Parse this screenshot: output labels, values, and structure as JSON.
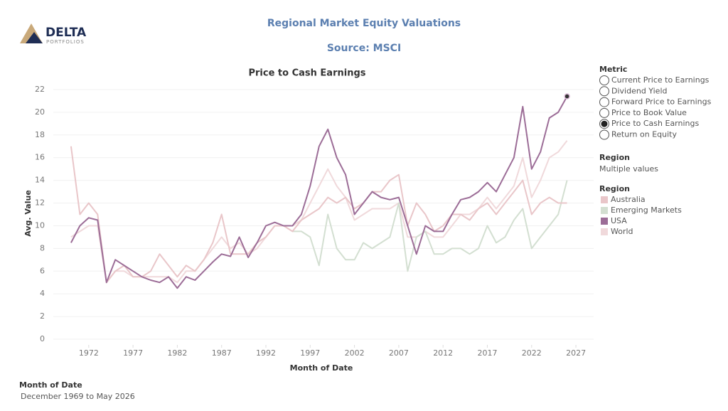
{
  "header": {
    "logo_name": "DELTA",
    "logo_sub": "PORTFOLIOS",
    "title": "Regional Market Equity Valuations",
    "subtitle": "Source: MSCI"
  },
  "chart_data": {
    "type": "line",
    "title": "Price to Cash Earnings",
    "x_label": "Month of Date",
    "y_label": "Avg. Value",
    "x": [
      1970,
      1971,
      1972,
      1973,
      1974,
      1975,
      1976,
      1977,
      1978,
      1979,
      1980,
      1981,
      1982,
      1983,
      1984,
      1985,
      1986,
      1987,
      1988,
      1989,
      1990,
      1991,
      1992,
      1993,
      1994,
      1995,
      1996,
      1997,
      1998,
      1999,
      2000,
      2001,
      2002,
      2003,
      2004,
      2005,
      2006,
      2007,
      2008,
      2009,
      2010,
      2011,
      2012,
      2013,
      2014,
      2015,
      2016,
      2017,
      2018,
      2019,
      2020,
      2021,
      2022,
      2023,
      2024,
      2025,
      2026
    ],
    "series": [
      {
        "name": "Australia",
        "color": "#e9c6c9",
        "values": [
          17,
          11,
          12,
          11,
          5,
          6,
          6.5,
          5.5,
          5.5,
          6,
          7.5,
          6.5,
          5.5,
          6.5,
          6,
          7,
          8.5,
          11,
          7.5,
          7.5,
          7.5,
          8.5,
          9,
          10,
          10,
          9.5,
          10.5,
          11,
          11.5,
          12.5,
          12,
          12.5,
          11.5,
          12,
          13,
          13,
          14,
          14.5,
          10,
          12,
          11,
          9.5,
          10,
          11,
          11,
          10.5,
          11.5,
          12,
          11,
          12,
          13,
          14,
          11,
          12,
          12.5,
          12,
          12
        ]
      },
      {
        "name": "Emerging Markets",
        "color": "#d3dfd1",
        "values": [
          null,
          null,
          null,
          null,
          null,
          null,
          null,
          null,
          null,
          null,
          null,
          null,
          null,
          null,
          null,
          null,
          null,
          null,
          null,
          null,
          null,
          null,
          null,
          null,
          null,
          9.5,
          9.5,
          9,
          6.5,
          11,
          8,
          7,
          7,
          8.5,
          8,
          8.5,
          9,
          12,
          6,
          9,
          9.5,
          7.5,
          7.5,
          8,
          8,
          7.5,
          8,
          10,
          8.5,
          9,
          10.5,
          11.5,
          8,
          9,
          10,
          11,
          14
        ]
      },
      {
        "name": "USA",
        "color": "#9c6d97",
        "values": [
          8.5,
          10,
          10.7,
          10.5,
          5,
          7,
          6.5,
          6,
          5.5,
          5.2,
          5,
          5.5,
          4.5,
          5.5,
          5.2,
          6,
          6.8,
          7.5,
          7.3,
          9,
          7.2,
          8.5,
          10,
          10.3,
          10,
          10,
          11,
          13.5,
          17,
          18.5,
          16,
          14.5,
          11,
          12,
          13,
          12.5,
          12.3,
          12.5,
          10,
          7.5,
          10,
          9.5,
          9.5,
          11,
          12.3,
          12.5,
          13,
          13.8,
          13,
          14.5,
          16,
          20.5,
          15,
          16.5,
          19.5,
          20,
          21.4
        ]
      },
      {
        "name": "World",
        "color": "#f0d9db",
        "values": [
          9,
          9.5,
          10,
          10,
          5,
          6,
          6,
          5.5,
          5.5,
          5.5,
          5.5,
          5.5,
          5,
          6,
          6,
          7,
          8,
          9,
          8,
          8.5,
          7.5,
          8,
          9,
          10,
          10,
          10,
          10.5,
          12,
          13.5,
          15,
          13.5,
          12.5,
          10.5,
          11,
          11.5,
          11.5,
          11.5,
          12,
          9,
          9,
          9.5,
          9,
          9,
          10,
          11,
          11,
          11.5,
          12.5,
          11.5,
          12.5,
          13.5,
          16,
          12.5,
          14,
          16,
          16.5,
          17.5
        ]
      }
    ],
    "xlim": [
      1968,
      2029
    ],
    "xticks": [
      1972,
      1977,
      1982,
      1987,
      1992,
      1997,
      2002,
      2007,
      2012,
      2017,
      2022,
      2027
    ],
    "ylim": [
      -0.5,
      22.5
    ],
    "yticks": [
      0,
      2,
      4,
      6,
      8,
      10,
      12,
      14,
      16,
      18,
      20,
      22
    ],
    "grid": true,
    "legend_title": "Region"
  },
  "metric_filter": {
    "title": "Metric",
    "options": [
      "Current Price to Earnings",
      "Dividend Yield",
      "Forward Price to Earnings",
      "Price to Book Value",
      "Price to Cash Earnings",
      "Return on Equity"
    ],
    "selected": 4
  },
  "region_filter": {
    "title": "Region",
    "value": "Multiple values"
  },
  "date_filter": {
    "title": "Month of Date",
    "value": "December 1969 to May 2026"
  }
}
